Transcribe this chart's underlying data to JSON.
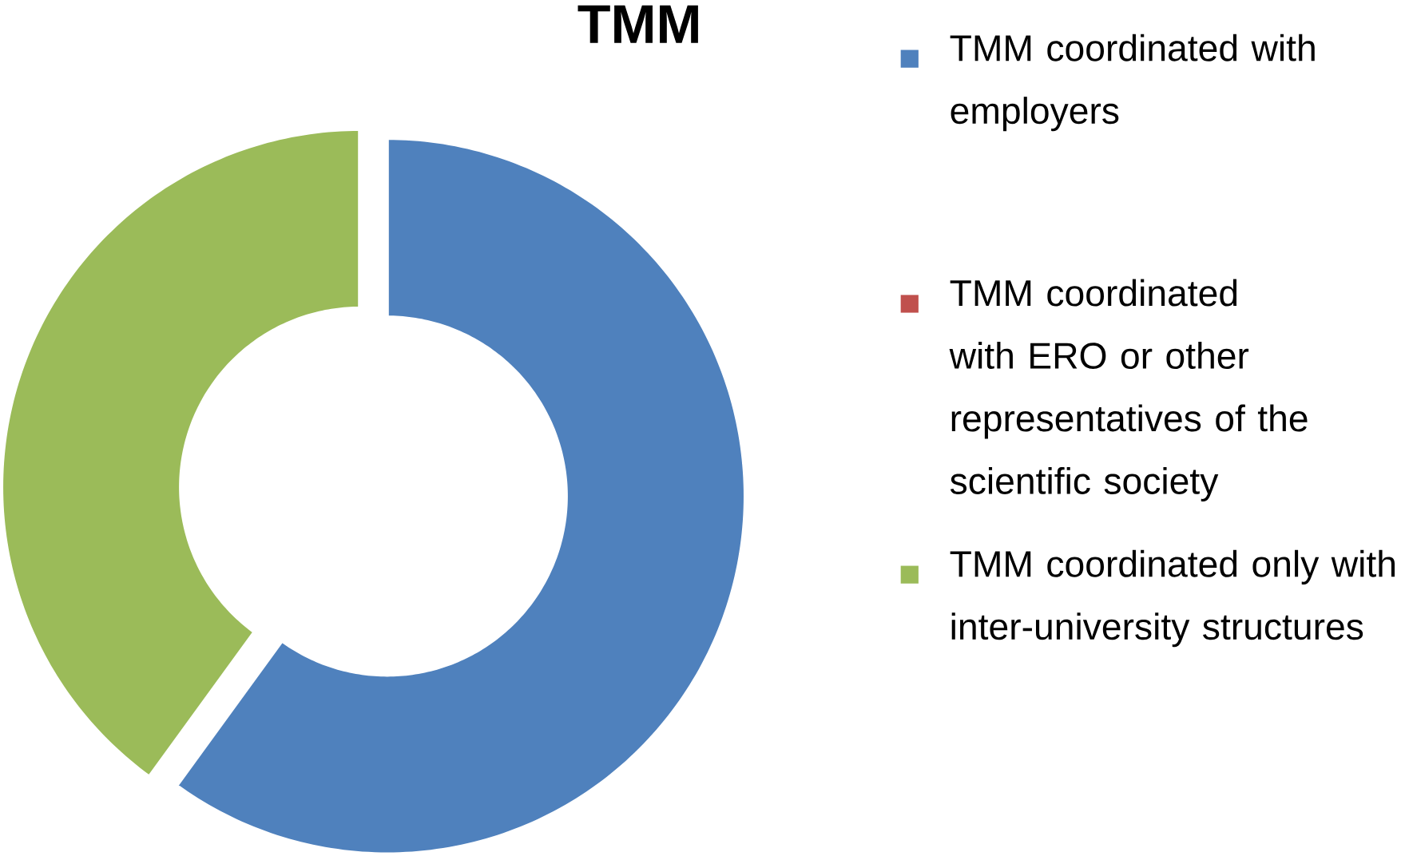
{
  "chart_data": {
    "type": "donut",
    "title": "TMM",
    "categories": [
      "TMM coordinated with employers",
      "TMM coordinated with ERO or other representatives of the scientific society",
      "TMM coordinated only with inter-university structures"
    ],
    "values": [
      60,
      0,
      40
    ],
    "colors": [
      "#4f81bd",
      "#c0504d",
      "#9bbb59"
    ],
    "legend": "right"
  }
}
